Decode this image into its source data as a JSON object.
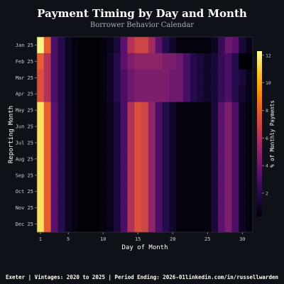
{
  "title": "Payment Timing by Day and Month",
  "subtitle": "Borrower Behavior Calendar",
  "footer": {
    "left": "Exeter | Vintages: 2020 to 2025 | Period Ending: 2026-01",
    "right": "linkedin.com/in/russellwarden"
  },
  "colors": {
    "background": "#0e1117",
    "colormap": "inferno"
  },
  "chart_data": {
    "type": "heatmap",
    "title": "Payment Timing by Day and Month",
    "subtitle": "Borrower Behavior Calendar",
    "xlabel": "Day of Month",
    "ylabel": "Reporting Month",
    "colorbar_label": "% of Monthly Payments",
    "x": [
      1,
      2,
      3,
      4,
      5,
      6,
      7,
      8,
      9,
      10,
      11,
      12,
      13,
      14,
      15,
      16,
      17,
      18,
      19,
      20,
      21,
      22,
      23,
      24,
      25,
      26,
      27,
      28,
      29,
      30,
      31
    ],
    "x_ticks": [
      1,
      5,
      10,
      15,
      20,
      25,
      30
    ],
    "y": [
      "Jan 25",
      "Feb 25",
      "Mar 25",
      "Apr 25",
      "May 25",
      "Jun 25",
      "Jul 25",
      "Aug 25",
      "Sep 25",
      "Oct 25",
      "Nov 25",
      "Dec 25"
    ],
    "colorbar_ticks": [
      2,
      4,
      6,
      8,
      10,
      12
    ],
    "vmin": 0.3,
    "vmax": 12.3,
    "values": [
      [
        12.0,
        8.0,
        3.0,
        2.0,
        1.0,
        0.5,
        0.4,
        0.4,
        0.4,
        0.5,
        0.8,
        1.5,
        3.5,
        6.0,
        7.0,
        7.0,
        5.5,
        3.5,
        2.0,
        1.2,
        0.5,
        0.5,
        0.5,
        0.5,
        0.5,
        1.0,
        2.5,
        4.0,
        3.5,
        1.5,
        0.8
      ],
      [
        8.0,
        6.0,
        3.0,
        2.0,
        1.0,
        0.5,
        0.4,
        0.4,
        0.4,
        0.5,
        1.0,
        2.0,
        3.5,
        4.5,
        5.0,
        5.0,
        5.0,
        5.0,
        4.5,
        4.5,
        4.0,
        3.0,
        2.0,
        1.5,
        1.2,
        1.5,
        2.5,
        3.0,
        2.0,
        0.3,
        0.3
      ],
      [
        7.5,
        6.0,
        3.0,
        2.0,
        1.0,
        0.5,
        0.4,
        0.4,
        0.4,
        0.5,
        1.0,
        2.0,
        3.0,
        4.0,
        4.5,
        4.5,
        4.5,
        4.5,
        4.5,
        4.0,
        4.0,
        3.0,
        2.0,
        1.5,
        1.2,
        1.5,
        2.5,
        3.0,
        2.0,
        1.5,
        0.8
      ],
      [
        7.5,
        6.0,
        3.0,
        2.0,
        1.0,
        0.5,
        0.4,
        0.4,
        0.4,
        0.5,
        1.0,
        2.0,
        3.0,
        4.0,
        4.5,
        4.5,
        4.5,
        4.5,
        4.5,
        4.0,
        4.0,
        3.0,
        2.0,
        1.5,
        1.2,
        1.5,
        2.5,
        3.0,
        2.0,
        1.2,
        0.8
      ],
      [
        11.5,
        8.0,
        3.5,
        2.0,
        1.0,
        0.5,
        0.4,
        0.4,
        0.4,
        0.5,
        0.8,
        1.5,
        3.0,
        6.0,
        7.5,
        7.0,
        5.0,
        3.0,
        2.0,
        1.2,
        0.5,
        0.5,
        0.5,
        0.5,
        0.5,
        1.5,
        3.5,
        4.5,
        3.0,
        1.0,
        0.5
      ],
      [
        11.5,
        8.0,
        3.5,
        2.0,
        1.0,
        0.5,
        0.4,
        0.4,
        0.4,
        0.5,
        0.8,
        1.5,
        3.0,
        6.0,
        7.5,
        7.0,
        5.0,
        3.0,
        2.0,
        1.2,
        0.5,
        0.5,
        0.5,
        0.5,
        0.5,
        1.5,
        3.5,
        4.5,
        3.0,
        1.0,
        0.5
      ],
      [
        11.5,
        8.0,
        3.5,
        2.0,
        1.0,
        0.5,
        0.4,
        0.4,
        0.4,
        0.5,
        0.8,
        1.5,
        3.0,
        6.0,
        7.5,
        7.0,
        5.0,
        3.0,
        2.0,
        1.2,
        0.5,
        0.5,
        0.5,
        0.5,
        0.5,
        1.5,
        3.5,
        4.5,
        3.0,
        1.0,
        0.5
      ],
      [
        11.5,
        8.0,
        3.5,
        2.0,
        1.0,
        0.5,
        0.4,
        0.4,
        0.4,
        0.5,
        0.8,
        1.5,
        3.0,
        6.0,
        7.5,
        7.0,
        5.0,
        3.0,
        2.0,
        1.2,
        0.5,
        0.5,
        0.5,
        0.5,
        0.5,
        1.5,
        3.5,
        4.5,
        3.0,
        1.0,
        0.5
      ],
      [
        11.5,
        8.0,
        3.5,
        2.0,
        1.0,
        0.5,
        0.4,
        0.4,
        0.4,
        0.5,
        0.8,
        1.5,
        3.0,
        6.0,
        7.5,
        7.0,
        5.0,
        3.0,
        2.0,
        1.2,
        0.5,
        0.5,
        0.5,
        0.5,
        0.5,
        1.5,
        3.5,
        4.5,
        3.0,
        1.0,
        0.5
      ],
      [
        11.5,
        8.0,
        3.5,
        2.0,
        1.0,
        0.5,
        0.4,
        0.4,
        0.4,
        0.5,
        0.8,
        1.5,
        3.0,
        6.0,
        7.5,
        7.0,
        5.0,
        3.0,
        2.0,
        1.2,
        0.5,
        0.5,
        0.5,
        0.5,
        0.5,
        1.5,
        3.5,
        4.5,
        3.0,
        1.0,
        0.5
      ],
      [
        11.5,
        8.0,
        3.5,
        2.0,
        1.0,
        0.5,
        0.4,
        0.4,
        0.4,
        0.5,
        0.8,
        1.5,
        3.0,
        6.0,
        7.5,
        7.0,
        5.0,
        3.0,
        2.0,
        1.2,
        0.5,
        0.5,
        0.5,
        0.5,
        0.5,
        1.5,
        3.5,
        4.5,
        3.0,
        1.0,
        0.5
      ],
      [
        11.5,
        8.0,
        3.5,
        2.0,
        1.0,
        0.5,
        0.4,
        0.4,
        0.4,
        0.5,
        0.8,
        1.5,
        3.0,
        6.0,
        7.5,
        7.0,
        5.0,
        3.0,
        2.0,
        1.2,
        0.5,
        0.5,
        0.5,
        0.5,
        0.5,
        1.5,
        3.5,
        4.5,
        3.0,
        1.0,
        0.5
      ]
    ]
  }
}
